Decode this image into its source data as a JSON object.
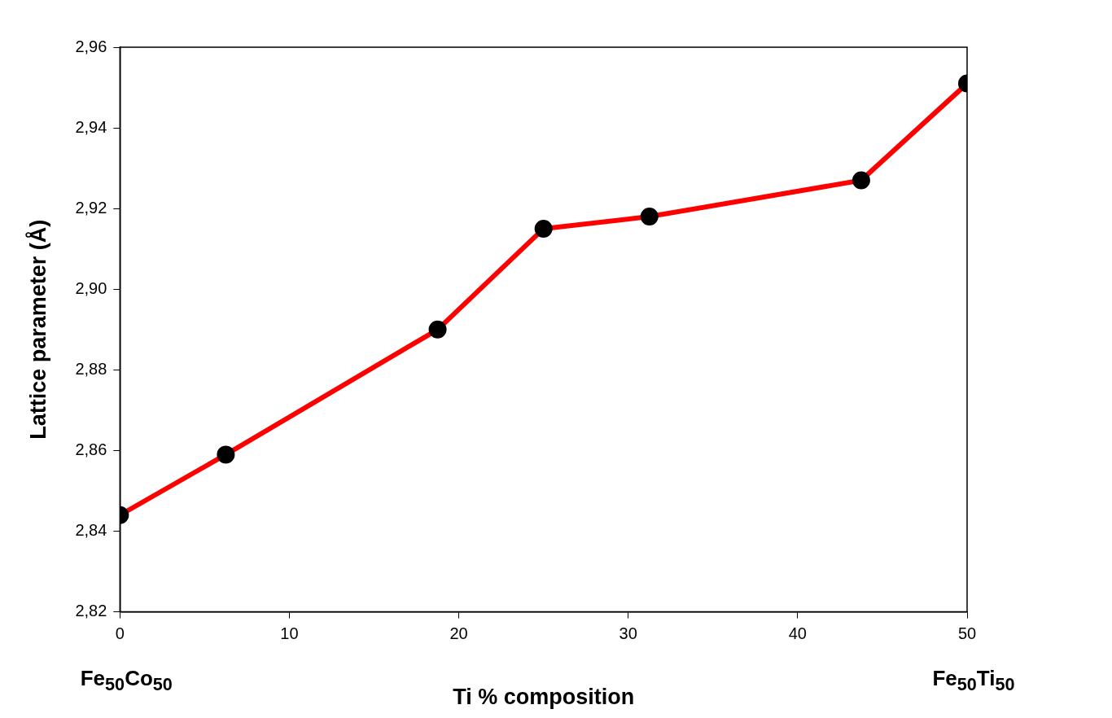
{
  "chart_data": {
    "type": "line",
    "xlabel": "Ti % composition",
    "ylabel": "Lattice parameter (Å)",
    "x": [
      0,
      6.25,
      18.75,
      25,
      31.25,
      43.75,
      50
    ],
    "series": [
      {
        "color": "#ff0000",
        "values": [
          2.844,
          2.859,
          2.89,
          2.915,
          2.918,
          2.927,
          2.951
        ]
      }
    ],
    "xlim": [
      0,
      50
    ],
    "xticks": [
      0,
      10,
      20,
      30,
      40,
      50
    ],
    "ylim": [
      2.82,
      2.96
    ],
    "yticks": [
      {
        "value": 2.82,
        "label": "2,82"
      },
      {
        "value": 2.84,
        "label": "2,84"
      },
      {
        "value": 2.86,
        "label": "2,86"
      },
      {
        "value": 2.88,
        "label": "2,88"
      },
      {
        "value": 2.9,
        "label": "2,90"
      },
      {
        "value": 2.92,
        "label": "2,92"
      },
      {
        "value": 2.94,
        "label": "2,94"
      },
      {
        "value": 2.96,
        "label": "2,96"
      }
    ],
    "annotations": [
      "Fe$_{50}$Co$_{50}$",
      "Fe$_{50}$Ti$_{50}$"
    ],
    "grid": false,
    "legend": false,
    "marker": "circle",
    "line_style": "solid"
  }
}
